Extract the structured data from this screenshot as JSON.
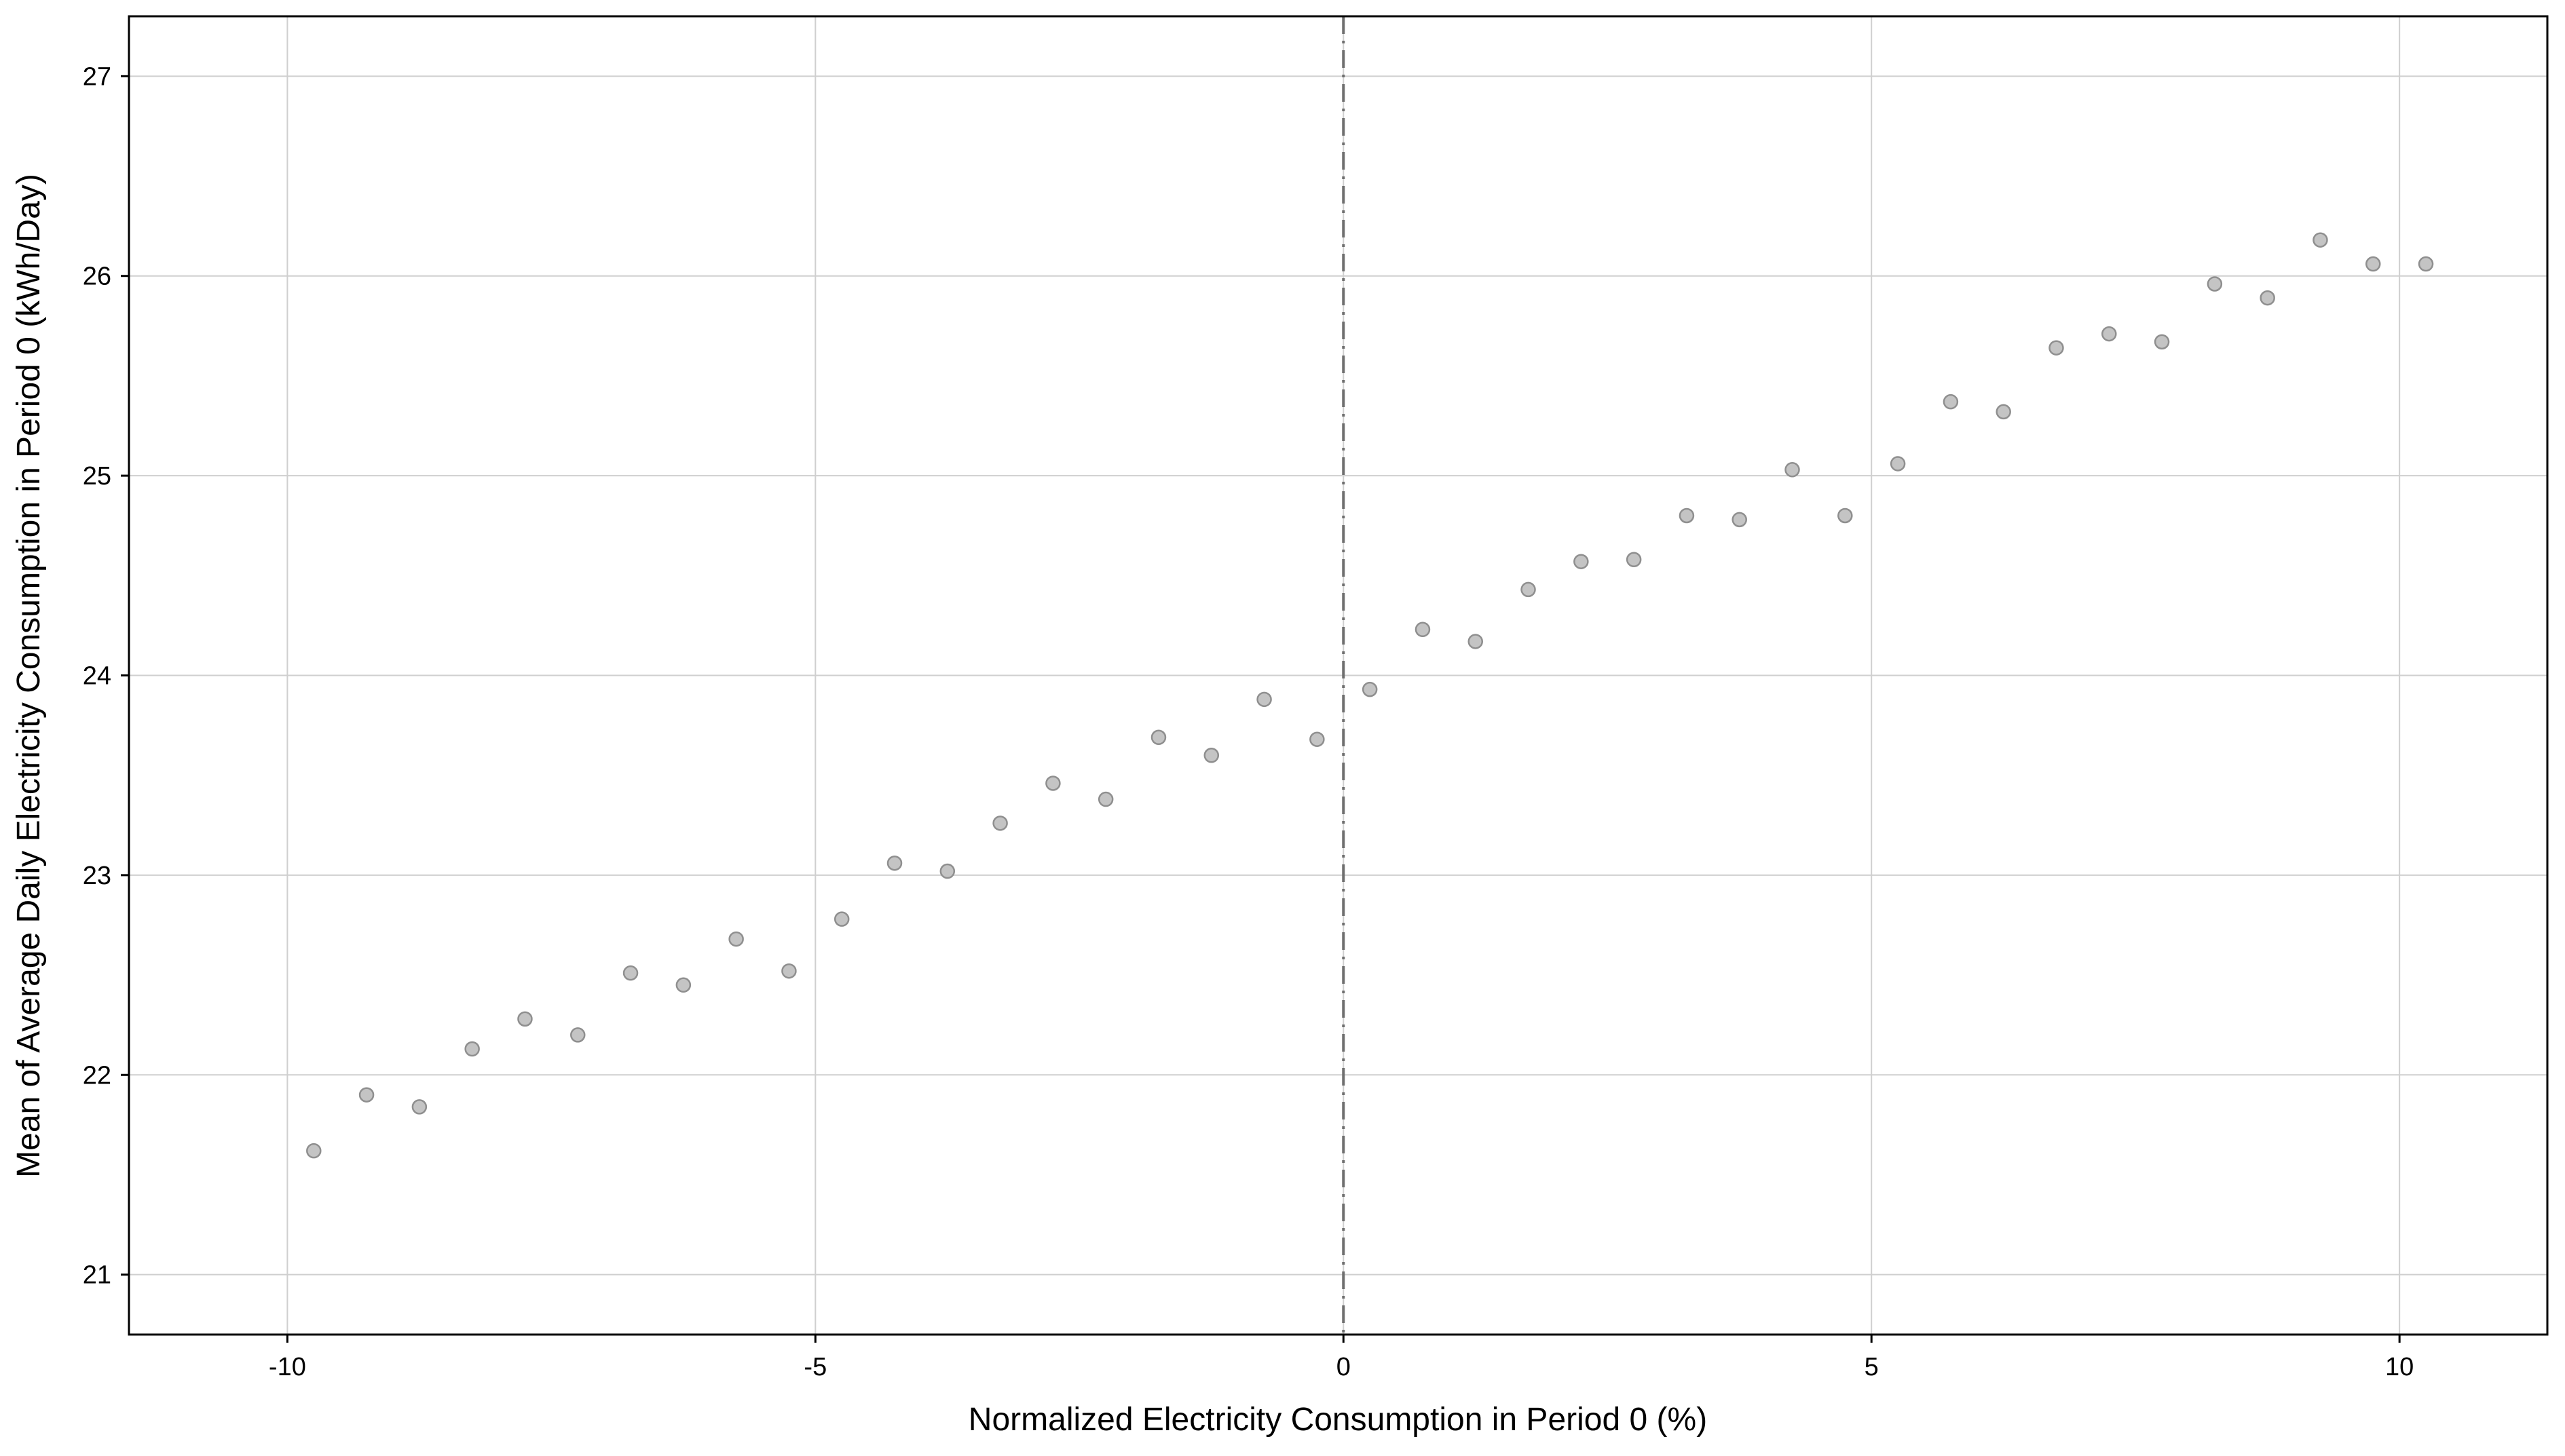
{
  "chart_data": {
    "type": "scatter",
    "title": "",
    "xlabel": "Normalized Electricity Consumption in Period 0  (%)",
    "ylabel": "Mean of Average Daily Electricity Consumption in Period 0  (kWh/Day)",
    "xlim": [
      -11.5,
      11.4
    ],
    "ylim": [
      20.7,
      27.3
    ],
    "xticks": [
      -10,
      -5,
      0,
      5,
      10
    ],
    "xtick_labels": [
      "-10",
      "-5",
      "0",
      "5",
      "10"
    ],
    "yticks": [
      21,
      22,
      23,
      24,
      25,
      26,
      27
    ],
    "ytick_labels": [
      "21",
      "22",
      "23",
      "24",
      "25",
      "26",
      "27"
    ],
    "grid": true,
    "legend": "none",
    "reference_line": {
      "x": 0,
      "style": "dash-dot"
    },
    "colors": {
      "points_fill": "#c4c4c4",
      "points_stroke": "#8f8f8f",
      "grid": "#cfcfcf",
      "reference_line": "#6e6e6e",
      "frame": "#000000"
    },
    "x": [
      -9.75,
      -9.25,
      -8.75,
      -8.25,
      -7.75,
      -7.25,
      -6.75,
      -6.25,
      -5.75,
      -5.25,
      -4.75,
      -4.25,
      -3.75,
      -3.25,
      -2.75,
      -2.25,
      -1.75,
      -1.25,
      -0.75,
      -0.25,
      0.25,
      0.75,
      1.25,
      1.75,
      2.25,
      2.75,
      3.25,
      3.75,
      4.25,
      4.75,
      5.25,
      5.75,
      6.25,
      6.75,
      7.25,
      7.75,
      8.25,
      8.75,
      9.25,
      9.75,
      10.25
    ],
    "y": [
      21.62,
      21.9,
      21.84,
      22.13,
      22.28,
      22.2,
      22.51,
      22.45,
      22.68,
      22.52,
      22.78,
      23.06,
      23.02,
      23.26,
      23.46,
      23.38,
      23.69,
      23.6,
      23.88,
      23.68,
      23.93,
      24.23,
      24.17,
      24.43,
      24.57,
      24.58,
      24.8,
      24.78,
      25.03,
      24.8,
      25.06,
      25.37,
      25.32,
      25.64,
      25.71,
      25.67,
      25.96,
      25.89,
      26.18,
      26.06,
      26.06
    ]
  }
}
